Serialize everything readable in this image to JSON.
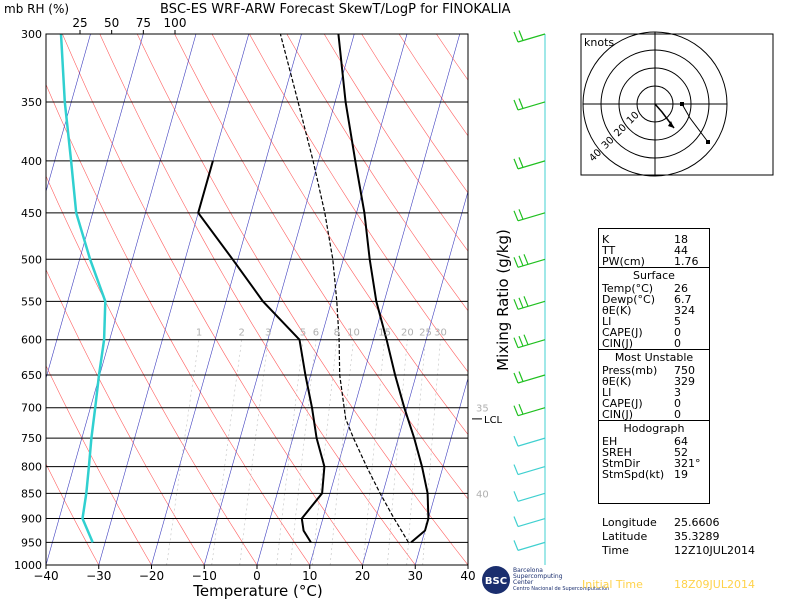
{
  "header": {
    "units": "mb  RH (%)",
    "title": "BSC-ES WRF-ARW Forecast SkewT/LogP for FINOKALIA"
  },
  "colors": {
    "temp": "#000000",
    "dew": "#30d0d0",
    "isotherm": "#4040c0",
    "dry_adiabat": "#ff6060",
    "moist_adiabat": "#c0c0c0",
    "wind": "#20c020",
    "wind_light": "#40d0d0"
  },
  "chart_data": {
    "type": "line",
    "title": "BSC-ES WRF-ARW Forecast SkewT/LogP for FINOKALIA",
    "xlabel": "Temperature (°C)",
    "ylabel": "mb",
    "y_scale": "log",
    "xlim": [
      -40,
      40
    ],
    "ylim": [
      1000,
      300
    ],
    "x_ticks": [
      "−40",
      "−30",
      "−20",
      "−10",
      "0",
      "10",
      "20",
      "30",
      "40"
    ],
    "x_tick_values": [
      -40,
      -30,
      -20,
      -10,
      0,
      10,
      20,
      30,
      40
    ],
    "y_ticks": [
      300,
      350,
      400,
      450,
      500,
      550,
      600,
      650,
      700,
      750,
      800,
      850,
      900,
      950,
      1000
    ],
    "rh_axis_labels": [
      "25",
      "50",
      "75",
      "100"
    ],
    "rh_axis_values": [
      25,
      50,
      75,
      100
    ],
    "mixing_ratio_labels": [
      "1",
      "2",
      "3",
      "5",
      "6",
      "8",
      "10",
      "15",
      "20",
      "25",
      "30"
    ],
    "mixing_ratio_axis_label": "Mixing Ratio (g/kg)",
    "theta_labels": [
      {
        "text": "35",
        "p": 700
      },
      {
        "text": "40",
        "p": 850
      }
    ],
    "lcl": {
      "label": "LCL",
      "p": 718
    },
    "series": [
      {
        "key": "temperature",
        "p": [
          950,
          925,
          900,
          850,
          800,
          750,
          700,
          650,
          600,
          550,
          500,
          450,
          400,
          350,
          300
        ],
        "v": [
          28,
          30,
          30,
          28.5,
          26,
          23,
          19.5,
          16,
          12.5,
          8.5,
          5,
          1.5,
          -3,
          -8,
          -13
        ]
      },
      {
        "key": "dewpoint_temperature",
        "p": [
          950,
          925,
          900,
          850,
          800,
          750,
          700,
          650,
          600,
          550,
          500,
          450,
          400
        ],
        "v": [
          9,
          7,
          6,
          8.5,
          7.5,
          4.5,
          2,
          -1,
          -4,
          -13,
          -21,
          -30,
          -30
        ]
      },
      {
        "key": "relative_humidity",
        "p": [
          950,
          900,
          850,
          800,
          750,
          700,
          650,
          600,
          550,
          500,
          450,
          400,
          350,
          300
        ],
        "v": [
          35,
          27,
          30,
          32,
          34,
          37,
          40,
          44,
          45,
          33,
          22,
          18,
          13,
          10
        ]
      },
      {
        "key": "parcel",
        "p": [
          950,
          900,
          850,
          800,
          750,
          718,
          650,
          600,
          550,
          500,
          450,
          400,
          350,
          300
        ],
        "v": [
          27.5,
          23.5,
          19.5,
          15.5,
          11.5,
          9,
          5.5,
          3.5,
          1,
          -2,
          -6,
          -11,
          -17,
          -24
        ]
      }
    ],
    "wind_pressures": [
      300,
      350,
      400,
      450,
      500,
      550,
      600,
      650,
      700,
      750,
      800,
      850,
      900,
      950
    ],
    "wind_speed_kt": [
      20,
      15,
      15,
      15,
      25,
      30,
      25,
      15,
      15,
      10,
      10,
      10,
      5,
      10
    ]
  },
  "hodograph": {
    "label": "knots",
    "ring_labels": [
      "10",
      "20",
      "30",
      "40"
    ],
    "ring_values": [
      10,
      20,
      30,
      40
    ]
  },
  "indices": [
    {
      "label": "K",
      "value": "18"
    },
    {
      "label": "TT",
      "value": "44"
    },
    {
      "label": "PW(cm)",
      "value": "1.76"
    }
  ],
  "surface": {
    "title": "Surface",
    "rows": [
      {
        "label": "Temp(°C)",
        "value": "26"
      },
      {
        "label": "Dewp(°C)",
        "value": "6.7"
      },
      {
        "label": "θE(K)",
        "value": "324"
      },
      {
        "label": "LI",
        "value": "5"
      },
      {
        "label": "CAPE(J)",
        "value": "0"
      },
      {
        "label": "CIN(J)",
        "value": "0"
      }
    ]
  },
  "most_unstable": {
    "title": "Most Unstable",
    "rows": [
      {
        "label": "Press(mb)",
        "value": "750"
      },
      {
        "label": "θE(K)",
        "value": "329"
      },
      {
        "label": "LI",
        "value": "3"
      },
      {
        "label": "CAPE(J)",
        "value": "0"
      },
      {
        "label": "CIN(J)",
        "value": "0"
      }
    ]
  },
  "hodograph_stats": {
    "title": "Hodograph",
    "rows": [
      {
        "label": "EH",
        "value": "64"
      },
      {
        "label": "SREH",
        "value": "52"
      },
      {
        "label": "StmDir",
        "value": "321°"
      },
      {
        "label": "StmSpd(kt)",
        "value": "19"
      }
    ]
  },
  "location": [
    {
      "label": "Longitude",
      "value": "25.6606"
    },
    {
      "label": "Latitude",
      "value": "35.3289"
    },
    {
      "label": "Time",
      "value": "12Z10JUL2014"
    }
  ],
  "footer": {
    "logo_line1": "BSC",
    "logo_line2": "Barcelona",
    "logo_line3": "Supercomputing",
    "logo_line4": "Center",
    "logo_line5": "Centro Nacional de Supercomputación",
    "initial_time_label": "Initial Time",
    "initial_time_value": "18Z09JUL2014"
  }
}
